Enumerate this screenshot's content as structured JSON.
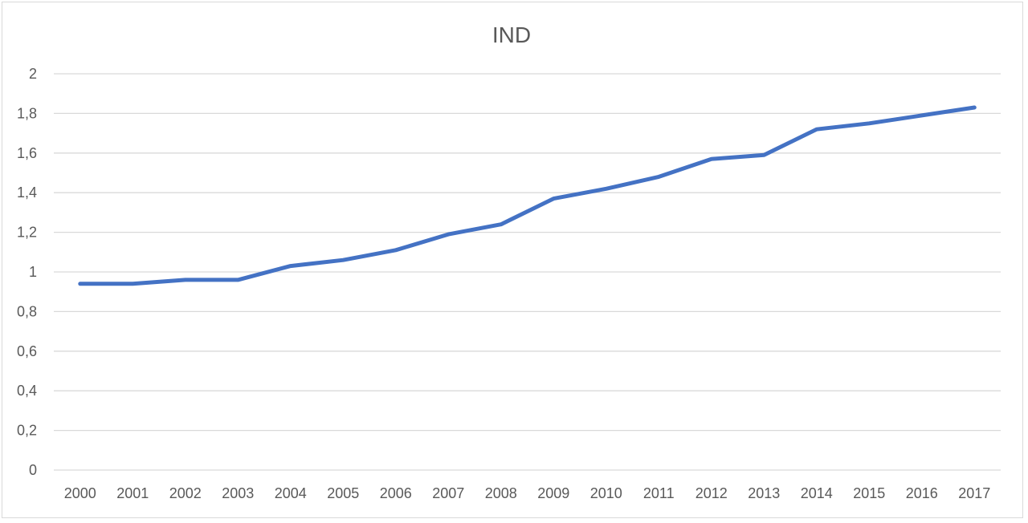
{
  "chart_data": {
    "type": "line",
    "title": "IND",
    "xlabel": "",
    "ylabel": "",
    "x": [
      "2000",
      "2001",
      "2002",
      "2003",
      "2004",
      "2005",
      "2006",
      "2007",
      "2008",
      "2009",
      "2010",
      "2011",
      "2012",
      "2013",
      "2014",
      "2015",
      "2016",
      "2017"
    ],
    "series": [
      {
        "values": [
          0.94,
          0.94,
          0.96,
          0.96,
          1.03,
          1.06,
          1.11,
          1.19,
          1.24,
          1.37,
          1.42,
          1.48,
          1.57,
          1.59,
          1.72,
          1.75,
          1.79,
          1.83
        ],
        "color": "#4472c4"
      }
    ],
    "ylim": [
      0,
      2
    ],
    "yticks": [
      "0",
      "0,2",
      "0,4",
      "0,6",
      "0,8",
      "1",
      "1,2",
      "1,4",
      "1,6",
      "1,8",
      "2"
    ],
    "grid": true,
    "legend": "none"
  },
  "colors": {
    "line": "#4472c4",
    "grid": "#d9d9d9",
    "text": "#595959"
  }
}
